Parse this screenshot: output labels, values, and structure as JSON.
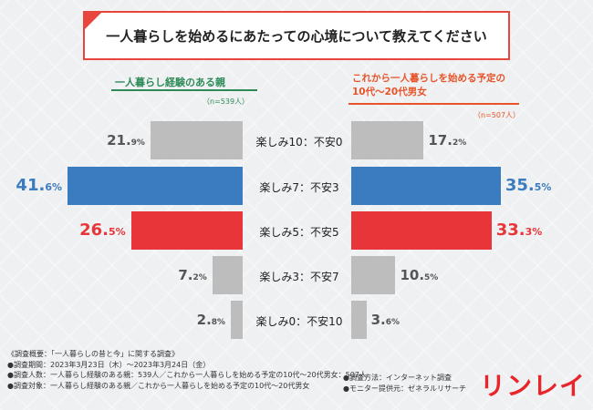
{
  "title": "一人暮らしを始めるにあたっての心境について教えてください",
  "left_group": {
    "label": "一人暮らし経験のある親",
    "n": "（n=539人）",
    "color": "#2e8b57"
  },
  "right_group": {
    "label_line1": "これから一人暮らしを始める予定の",
    "label_line2": "10代〜20代男女",
    "n": "（n=507人）",
    "color": "#e8542a"
  },
  "chart_data": {
    "type": "bar",
    "orientation": "horizontal-butterfly",
    "categories": [
      "楽しみ10：不安0",
      "楽しみ7：不安3",
      "楽しみ5：不安5",
      "楽しみ3：不安7",
      "楽しみ0：不安10"
    ],
    "series": [
      {
        "name": "一人暮らし経験のある親",
        "values": [
          21.9,
          41.6,
          26.5,
          7.2,
          2.8
        ]
      },
      {
        "name": "これから一人暮らしを始める予定の10代〜20代男女",
        "values": [
          17.2,
          35.5,
          33.3,
          10.5,
          3.6
        ]
      }
    ],
    "value_labels_left": [
      {
        "int": "21.",
        "dec": "9%"
      },
      {
        "int": "41.",
        "dec": "6%"
      },
      {
        "int": "26.",
        "dec": "5%"
      },
      {
        "int": "7.",
        "dec": "2%"
      },
      {
        "int": "2.",
        "dec": "8%"
      }
    ],
    "value_labels_right": [
      {
        "int": "17.",
        "dec": "2%"
      },
      {
        "int": "35.",
        "dec": "5%"
      },
      {
        "int": "33.",
        "dec": "3%"
      },
      {
        "int": "10.",
        "dec": "5%"
      },
      {
        "int": "3.",
        "dec": "6%"
      }
    ],
    "bar_colors": [
      "#bdbdbd",
      "#3b7bbf",
      "#e8353a",
      "#bdbdbd",
      "#bdbdbd"
    ],
    "label_colors": [
      "#555555",
      "#3b7bbf",
      "#e8353a",
      "#555555",
      "#555555"
    ],
    "unit": "%"
  },
  "notes": {
    "line1": "《調査概要：「一人暮らしの昔と今」に関する調査》",
    "line2": "●調査期間：2023年3月23日（木）〜2023年3月24日（金）",
    "line3": "●調査人数：一人暮らし経験のある親：539人／これから一人暮らしを始める予定の10代〜20代男女：507人",
    "line4": "●調査対象：一人暮らし経験のある親／これから一人暮らしを始める予定の10代〜20代男女",
    "right1": "●調査方法：インターネット調査",
    "right2": "●モニター提供元：ゼネラルリサーチ"
  },
  "logo": "リンレイ"
}
